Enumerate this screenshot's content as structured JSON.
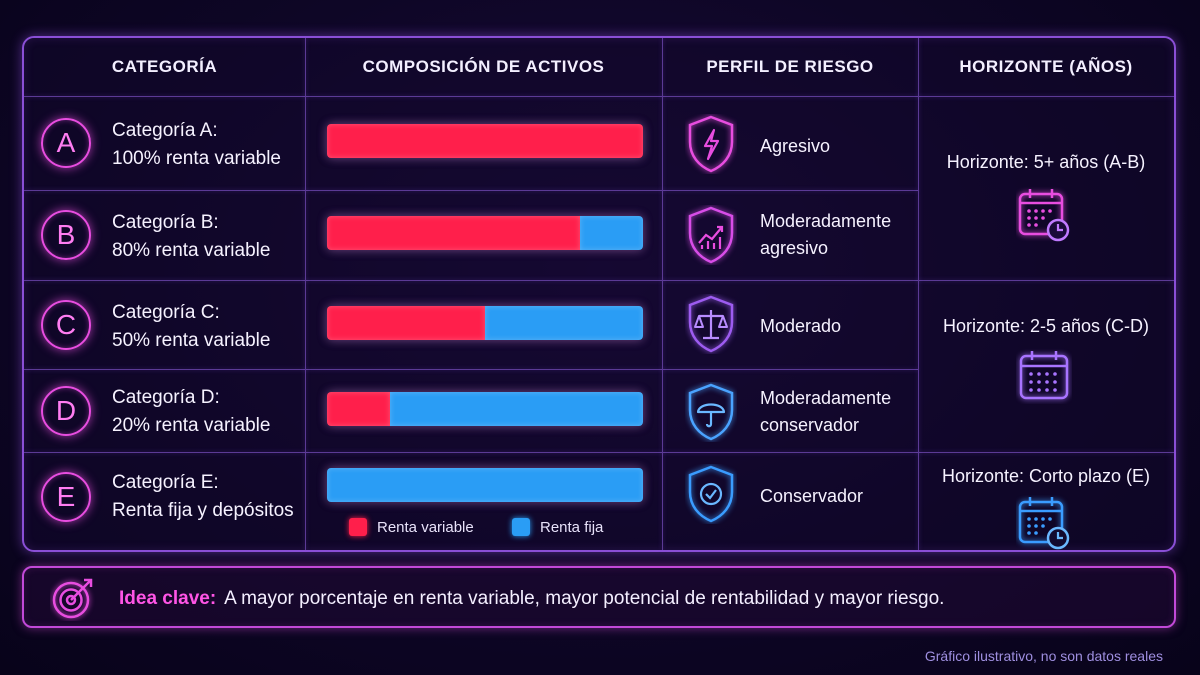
{
  "headers": {
    "categoria": "CATEGORÍA",
    "composicion": "COMPOSICIÓN DE ACTIVOS",
    "perfil": "PERFIL DE RIESGO",
    "horizonte": "HORIZONTE (AÑOS)"
  },
  "rows": [
    {
      "letter": "A",
      "name": "Categoría A:",
      "desc": "100% renta variable",
      "risk_line1": "Agresivo",
      "risk_line2": "",
      "risk_icon": "lightning-shield-icon"
    },
    {
      "letter": "B",
      "name": "Categoría B:",
      "desc": "80% renta variable",
      "risk_line1": "Moderadamente",
      "risk_line2": "agresivo",
      "risk_icon": "growth-chart-shield-icon"
    },
    {
      "letter": "C",
      "name": "Categoría C:",
      "desc": "50% renta variable",
      "risk_line1": "Moderado",
      "risk_line2": "",
      "risk_icon": "balance-scale-shield-icon"
    },
    {
      "letter": "D",
      "name": "Categoría D:",
      "desc": "20% renta variable",
      "risk_line1": "Moderadamente",
      "risk_line2": "conservador",
      "risk_icon": "umbrella-shield-icon"
    },
    {
      "letter": "E",
      "name": "Categoría E:",
      "desc": "Renta fija y depósitos",
      "risk_line1": "Conservador",
      "risk_line2": "",
      "risk_icon": "check-shield-icon"
    }
  ],
  "horizons": [
    {
      "label": "Horizonte: 5+ años (A-B)",
      "icon": "calendar-clock-icon"
    },
    {
      "label": "Horizonte: 2-5 años (C-D)",
      "icon": "calendar-icon"
    },
    {
      "label": "Horizonte: Corto plazo (E)",
      "icon": "calendar-clock-icon"
    }
  ],
  "legend": {
    "variable": "Renta variable",
    "fija": "Renta fija"
  },
  "note": {
    "key": "Idea clave:",
    "text": "A mayor porcentaje en renta variable, mayor potencial de rentabilidad y mayor riesgo."
  },
  "footer": "Gráfico ilustrativo, no son datos reales",
  "colors": {
    "renta_variable": "#ff1f4b",
    "renta_fija": "#2a9df5",
    "accent": "#e84de0",
    "border": "#8a4fd6"
  },
  "chart_data": {
    "type": "bar",
    "orientation": "horizontal",
    "stacked": true,
    "normalized": true,
    "categories": [
      "A",
      "B",
      "C",
      "D",
      "E"
    ],
    "series": [
      {
        "name": "Renta variable",
        "values": [
          100,
          80,
          50,
          20,
          0
        ]
      },
      {
        "name": "Renta fija",
        "values": [
          0,
          20,
          50,
          80,
          100
        ]
      }
    ],
    "xlim": [
      0,
      100
    ],
    "grid": false,
    "legend_position": "bottom"
  }
}
